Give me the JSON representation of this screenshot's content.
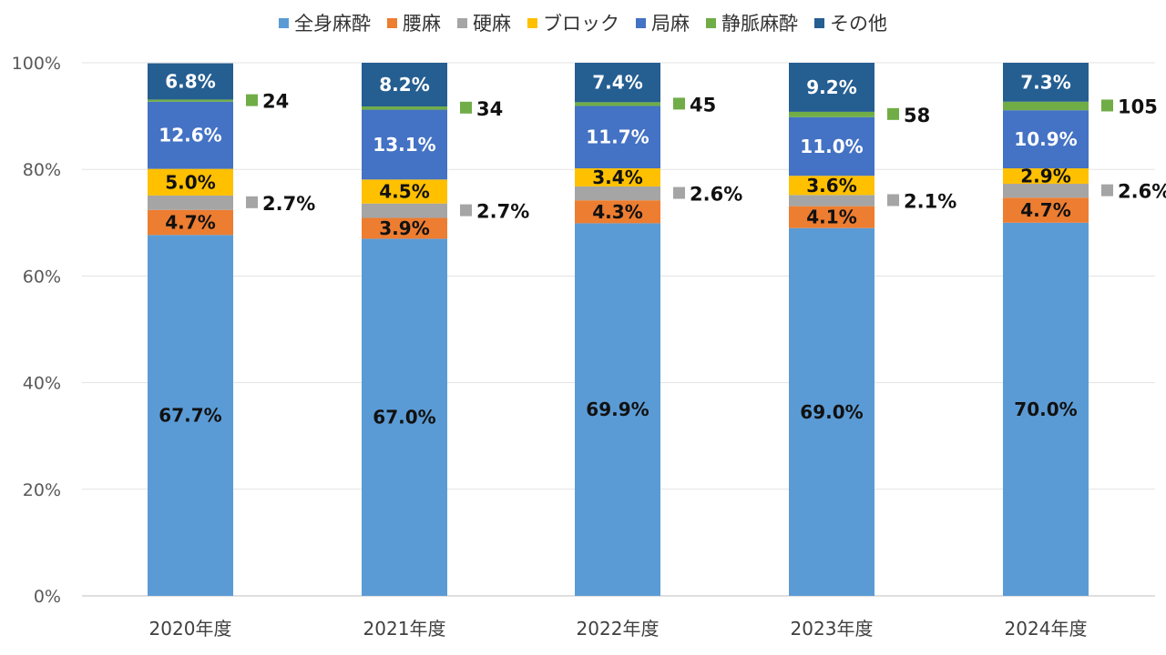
{
  "chart_data": {
    "type": "bar",
    "stacked": true,
    "percent": true,
    "title": "",
    "xlabel": "",
    "ylabel": "",
    "ylim": [
      0,
      100
    ],
    "yticks": [
      "0%",
      "20%",
      "40%",
      "60%",
      "80%",
      "100%"
    ],
    "grid": true,
    "legend": "top",
    "categories": [
      "2020年度",
      "2021年度",
      "2022年度",
      "2023年度",
      "2024年度"
    ],
    "series": [
      {
        "name": "全身麻酔",
        "color": "#5b9bd5",
        "values": [
          67.7,
          67.0,
          69.9,
          69.0,
          70.0
        ],
        "labels": [
          "67.7%",
          "67.0%",
          "69.9%",
          "69.0%",
          "70.0%"
        ],
        "label_color": "#111111"
      },
      {
        "name": "腰麻",
        "color": "#ed7d31",
        "values": [
          4.7,
          3.9,
          4.3,
          4.1,
          4.7
        ],
        "labels": [
          "4.7%",
          "3.9%",
          "4.3%",
          "4.1%",
          "4.7%"
        ],
        "label_color": "#111111"
      },
      {
        "name": "硬麻",
        "color": "#a5a5a5",
        "values": [
          2.7,
          2.7,
          2.6,
          2.1,
          2.6
        ],
        "labels": [
          "2.7%",
          "2.7%",
          "2.6%",
          "2.1%",
          "2.6%"
        ],
        "label_color": "#111111",
        "outside": true
      },
      {
        "name": "ブロック",
        "color": "#ffc000",
        "values": [
          5.0,
          4.5,
          3.4,
          3.6,
          2.9
        ],
        "labels": [
          "5.0%",
          "4.5%",
          "3.4%",
          "3.6%",
          "2.9%"
        ],
        "label_color": "#111111"
      },
      {
        "name": "局麻",
        "color": "#4472c4",
        "values": [
          12.6,
          13.1,
          11.7,
          11.0,
          10.9
        ],
        "labels": [
          "12.6%",
          "13.1%",
          "11.7%",
          "11.0%",
          "10.9%"
        ],
        "label_color": "#ffffff"
      },
      {
        "name": "静脈麻酔",
        "color": "#70ad47",
        "values": [
          0.4,
          0.6,
          0.7,
          1.0,
          1.6
        ],
        "labels": [
          "24",
          "34",
          "45",
          "58",
          "105"
        ],
        "label_color": "#111111",
        "outside": true
      },
      {
        "name": "その他",
        "color": "#255e91",
        "values": [
          6.8,
          8.2,
          7.4,
          9.2,
          7.3
        ],
        "labels": [
          "6.8%",
          "8.2%",
          "7.4%",
          "9.2%",
          "7.3%"
        ],
        "label_color": "#ffffff"
      }
    ]
  }
}
